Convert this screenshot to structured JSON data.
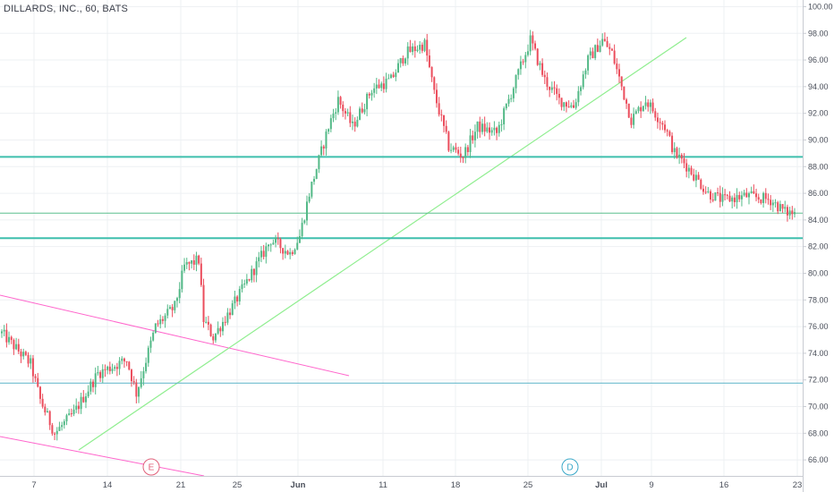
{
  "header": {
    "title": "DILLARDS, INC., 60, BATS"
  },
  "chart_data": {
    "type": "candlestick",
    "title": "DILLARDS, INC., 60, BATS",
    "symbol": "DILLARDS, INC.",
    "interval": "60",
    "exchange": "BATS",
    "grid": true,
    "ylim": [
      64.8,
      100.5
    ],
    "y_ticks": [
      "66.00",
      "68.00",
      "70.00",
      "72.00",
      "74.00",
      "76.00",
      "78.00",
      "80.00",
      "82.00",
      "84.00",
      "86.00",
      "88.00",
      "90.00",
      "92.00",
      "94.00",
      "96.00",
      "98.00",
      "100.00"
    ],
    "x_ticks": [
      "7",
      "14",
      "21",
      "25",
      "Jun",
      "11",
      "18",
      "25",
      "Jul",
      "9",
      "16",
      "23"
    ],
    "price_levels": [
      {
        "value": 88.73,
        "label": "88.73",
        "color": "#3fbfad"
      },
      {
        "value": 84.51,
        "label": "84.51",
        "color": "#5bbf8e"
      },
      {
        "value": 82.63,
        "label": "82.63",
        "color": "#3fbfad"
      },
      {
        "value": 71.76,
        "label": "71.76",
        "color": "#5ab4c8"
      }
    ],
    "events": [
      {
        "label": "E",
        "color": "#e0607a"
      },
      {
        "label": "D",
        "color": "#3aa8c8"
      }
    ],
    "colors": {
      "up": "#53b987",
      "down": "#eb4d5c",
      "trendline": "#90ee90",
      "channel": "#ff66cc"
    },
    "path": [
      {
        "i": 0,
        "p": 75.5
      },
      {
        "i": 12,
        "p": 73.2
      },
      {
        "i": 16,
        "p": 70.5
      },
      {
        "i": 22,
        "p": 68.0
      },
      {
        "i": 30,
        "p": 69.5
      },
      {
        "i": 40,
        "p": 72.5
      },
      {
        "i": 52,
        "p": 73.5
      },
      {
        "i": 56,
        "p": 71.0
      },
      {
        "i": 64,
        "p": 76.0
      },
      {
        "i": 72,
        "p": 77.5
      },
      {
        "i": 76,
        "p": 80.5
      },
      {
        "i": 82,
        "p": 81.0
      },
      {
        "i": 84,
        "p": 76.5
      },
      {
        "i": 88,
        "p": 75.2
      },
      {
        "i": 96,
        "p": 77.5
      },
      {
        "i": 104,
        "p": 80.0
      },
      {
        "i": 112,
        "p": 82.5
      },
      {
        "i": 120,
        "p": 81.5
      },
      {
        "i": 124,
        "p": 82.8
      },
      {
        "i": 128,
        "p": 86.0
      },
      {
        "i": 136,
        "p": 91.0
      },
      {
        "i": 140,
        "p": 93.0
      },
      {
        "i": 146,
        "p": 91.0
      },
      {
        "i": 154,
        "p": 93.8
      },
      {
        "i": 162,
        "p": 94.5
      },
      {
        "i": 168,
        "p": 96.5
      },
      {
        "i": 176,
        "p": 97.2
      },
      {
        "i": 180,
        "p": 93.5
      },
      {
        "i": 186,
        "p": 89.5
      },
      {
        "i": 192,
        "p": 88.8
      },
      {
        "i": 198,
        "p": 91.0
      },
      {
        "i": 206,
        "p": 90.5
      },
      {
        "i": 212,
        "p": 93.5
      },
      {
        "i": 220,
        "p": 97.5
      },
      {
        "i": 226,
        "p": 94.5
      },
      {
        "i": 232,
        "p": 93.0
      },
      {
        "i": 238,
        "p": 92.5
      },
      {
        "i": 244,
        "p": 96.0
      },
      {
        "i": 250,
        "p": 97.5
      },
      {
        "i": 254,
        "p": 96.5
      },
      {
        "i": 258,
        "p": 94.0
      },
      {
        "i": 262,
        "p": 91.5
      },
      {
        "i": 268,
        "p": 93.0
      },
      {
        "i": 276,
        "p": 91.0
      },
      {
        "i": 280,
        "p": 89.0
      },
      {
        "i": 284,
        "p": 88.3
      },
      {
        "i": 294,
        "p": 86.0
      },
      {
        "i": 300,
        "p": 85.5
      },
      {
        "i": 310,
        "p": 85.8
      },
      {
        "i": 320,
        "p": 85.5
      },
      {
        "i": 326,
        "p": 84.6
      },
      {
        "i": 330,
        "p": 84.5
      }
    ]
  }
}
